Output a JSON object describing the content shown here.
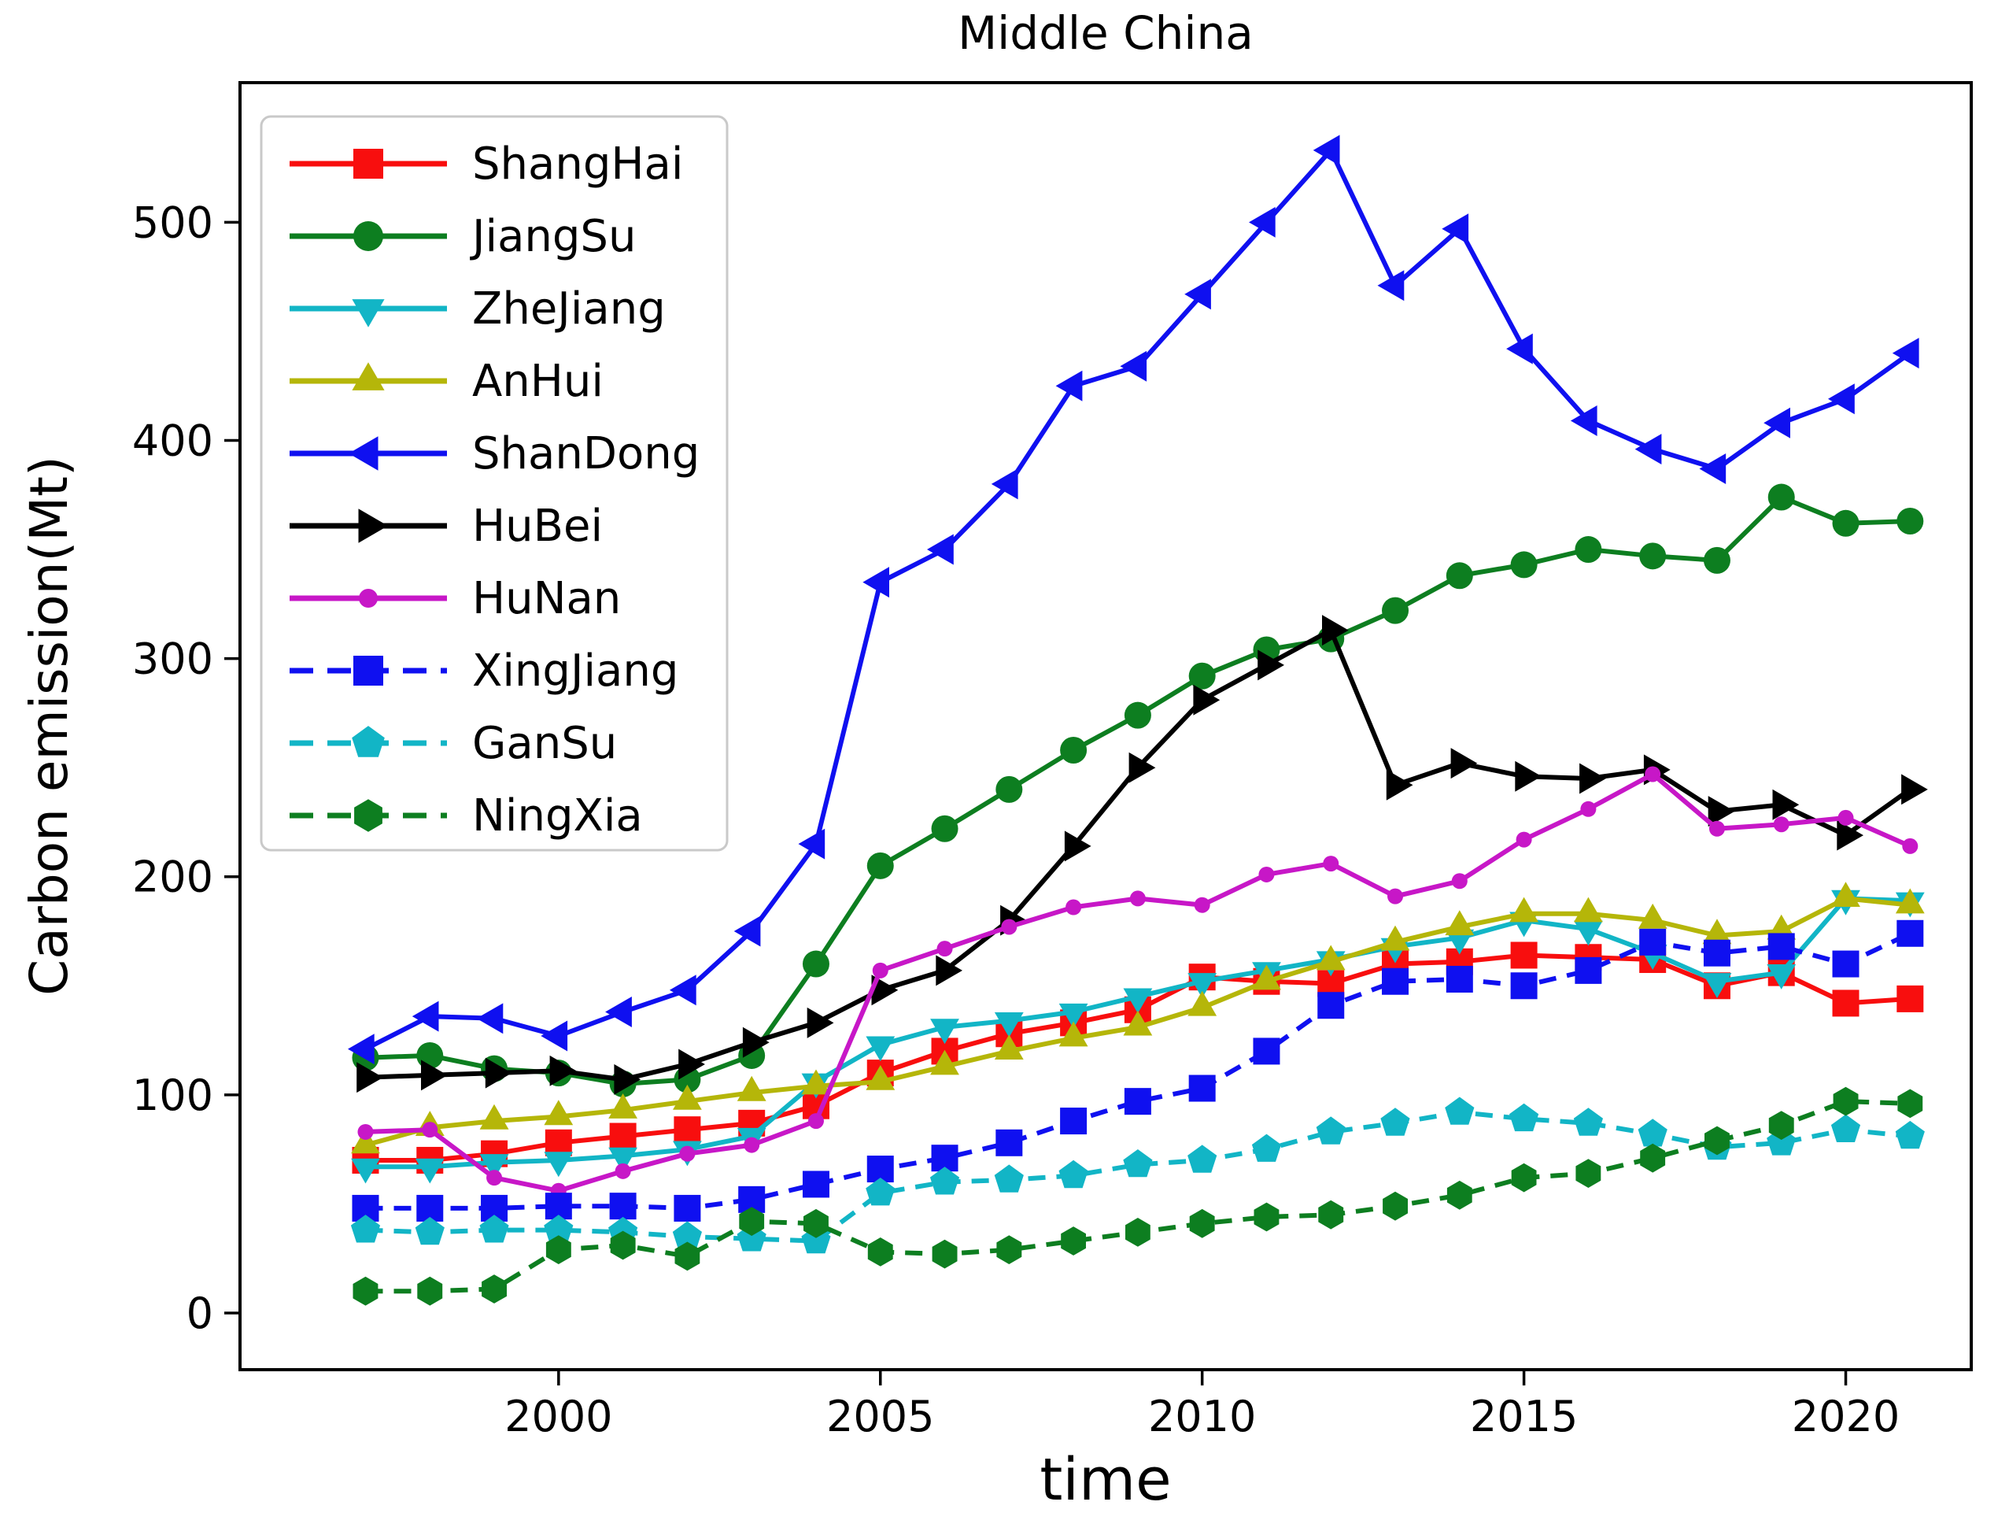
{
  "title": "Middle China",
  "chart_data": {
    "type": "line",
    "title": "Middle China",
    "xlabel": "time",
    "ylabel": "Carbon emission(Mt)",
    "x": [
      1997,
      1998,
      1999,
      2000,
      2001,
      2002,
      2003,
      2004,
      2005,
      2006,
      2007,
      2008,
      2009,
      2010,
      2011,
      2012,
      2013,
      2014,
      2015,
      2016,
      2017,
      2018,
      2019,
      2020,
      2021
    ],
    "xticks": [
      2000,
      2005,
      2010,
      2015,
      2020
    ],
    "yticks": [
      0,
      100,
      200,
      300,
      400,
      500
    ],
    "xlim": [
      1995.05,
      2021.95
    ],
    "ylim": [
      -26,
      564
    ],
    "grid": false,
    "legend_position": "upper left",
    "series": [
      {
        "name": "ShangHai",
        "color": "#f80e0e",
        "marker": "square",
        "line": "solid",
        "msize": 17,
        "values": [
          70,
          70,
          73,
          78,
          81,
          84,
          87,
          95,
          110,
          120,
          128,
          133,
          139,
          154,
          152,
          151,
          160,
          161,
          164,
          163,
          162,
          150,
          156,
          142,
          144
        ]
      },
      {
        "name": "JiangSu",
        "color": "#0d7e20",
        "marker": "circle",
        "line": "solid",
        "msize": 17,
        "values": [
          117,
          118,
          112,
          110,
          105,
          107,
          118,
          160,
          205,
          222,
          240,
          258,
          274,
          292,
          304,
          309,
          322,
          338,
          343,
          350,
          347,
          345,
          374,
          362,
          363
        ]
      },
      {
        "name": "ZheJiang",
        "color": "#12b5c6",
        "marker": "triangle-down",
        "line": "solid",
        "msize": 17,
        "values": [
          67,
          67,
          69,
          70,
          72,
          75,
          81,
          106,
          123,
          131,
          134,
          138,
          145,
          152,
          157,
          162,
          168,
          172,
          180,
          176,
          165,
          152,
          156,
          190,
          189
        ]
      },
      {
        "name": "AnHui",
        "color": "#b5b609",
        "marker": "triangle-up",
        "line": "solid",
        "msize": 17,
        "values": [
          77,
          85,
          88,
          90,
          93,
          97,
          101,
          104,
          106,
          113,
          120,
          126,
          131,
          140,
          152,
          161,
          170,
          177,
          183,
          183,
          180,
          173,
          175,
          190,
          187
        ]
      },
      {
        "name": "ShanDong",
        "color": "#0f10f0",
        "marker": "triangle-left",
        "line": "solid",
        "msize": 18,
        "values": [
          121,
          136,
          135,
          127,
          138,
          148,
          175,
          215,
          335,
          350,
          380,
          425,
          434,
          467,
          500,
          533,
          471,
          497,
          442,
          409,
          396,
          387,
          408,
          419,
          440
        ]
      },
      {
        "name": "HuBei",
        "color": "#000000",
        "marker": "triangle-right",
        "line": "solid",
        "msize": 18,
        "values": [
          108,
          109,
          110,
          111,
          107,
          114,
          124,
          133,
          148,
          157,
          180,
          214,
          250,
          281,
          297,
          313,
          242,
          252,
          246,
          245,
          249,
          230,
          233,
          219,
          240
        ]
      },
      {
        "name": "HuNan",
        "color": "#c717c7",
        "marker": "circle",
        "line": "solid",
        "msize": 10,
        "values": [
          83,
          84,
          62,
          56,
          65,
          73,
          77,
          88,
          157,
          167,
          177,
          186,
          190,
          187,
          201,
          206,
          191,
          198,
          217,
          231,
          247,
          222,
          224,
          227,
          214
        ]
      },
      {
        "name": "XingJiang",
        "color": "#0f10f0",
        "marker": "square",
        "line": "dashed",
        "msize": 17,
        "values": [
          48,
          48,
          48,
          49,
          49,
          48,
          52,
          59,
          66,
          71,
          78,
          88,
          97,
          103,
          120,
          141,
          152,
          153,
          150,
          157,
          170,
          165,
          168,
          160,
          174
        ]
      },
      {
        "name": "GanSu",
        "color": "#12b5c6",
        "marker": "pentagon",
        "line": "dashed",
        "msize": 17,
        "values": [
          38,
          37,
          38,
          38,
          37,
          35,
          34,
          33,
          55,
          60,
          61,
          63,
          68,
          70,
          75,
          83,
          87,
          92,
          89,
          87,
          82,
          76,
          78,
          84,
          81
        ]
      },
      {
        "name": "NingXia",
        "color": "#0d7e20",
        "marker": "hexagon",
        "line": "dashed",
        "msize": 16,
        "values": [
          10,
          10,
          11,
          29,
          31,
          26,
          42,
          41,
          28,
          27,
          29,
          33,
          37,
          41,
          44,
          45,
          49,
          54,
          62,
          64,
          71,
          79,
          86,
          97,
          96
        ]
      }
    ]
  }
}
